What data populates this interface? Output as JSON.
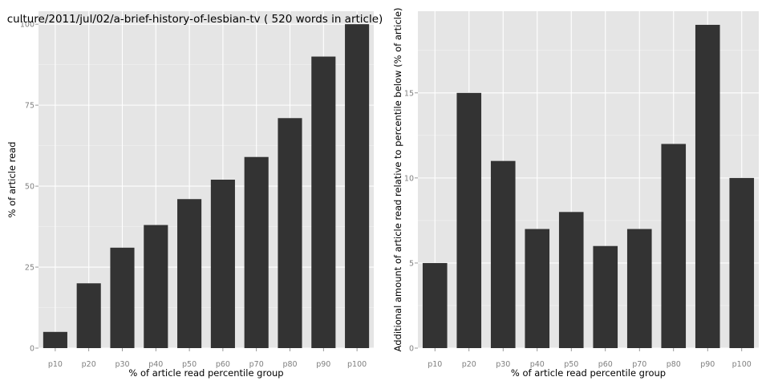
{
  "chart_data": [
    {
      "type": "bar",
      "title": "culture/2011/jul/02/a-brief-history-of-lesbian-tv ( 520 words in article)",
      "xlabel": "% of article read percentile group",
      "ylabel": "% of article read",
      "categories": [
        "p10",
        "p20",
        "p30",
        "p40",
        "p50",
        "p60",
        "p70",
        "p80",
        "p90",
        "p100"
      ],
      "values": [
        5,
        20,
        31,
        38,
        46,
        52,
        59,
        71,
        90,
        100
      ],
      "ylim": [
        0,
        104
      ],
      "yticks": [
        0,
        25,
        50,
        75,
        100
      ],
      "grid": true,
      "bar_color": "#333333",
      "panel_color": "#e5e5e5"
    },
    {
      "type": "bar",
      "title": "",
      "xlabel": "% of article read percentile group",
      "ylabel": "Additional amount of article read relative to percentile below (% of article)",
      "categories": [
        "p10",
        "p20",
        "p30",
        "p40",
        "p50",
        "p60",
        "p70",
        "p80",
        "p90",
        "p100"
      ],
      "values": [
        5,
        15,
        11,
        7,
        8,
        6,
        7,
        12,
        19,
        10
      ],
      "ylim": [
        0,
        19.8
      ],
      "yticks": [
        0,
        5,
        10,
        15
      ],
      "grid": true,
      "bar_color": "#333333",
      "panel_color": "#e5e5e5"
    }
  ]
}
